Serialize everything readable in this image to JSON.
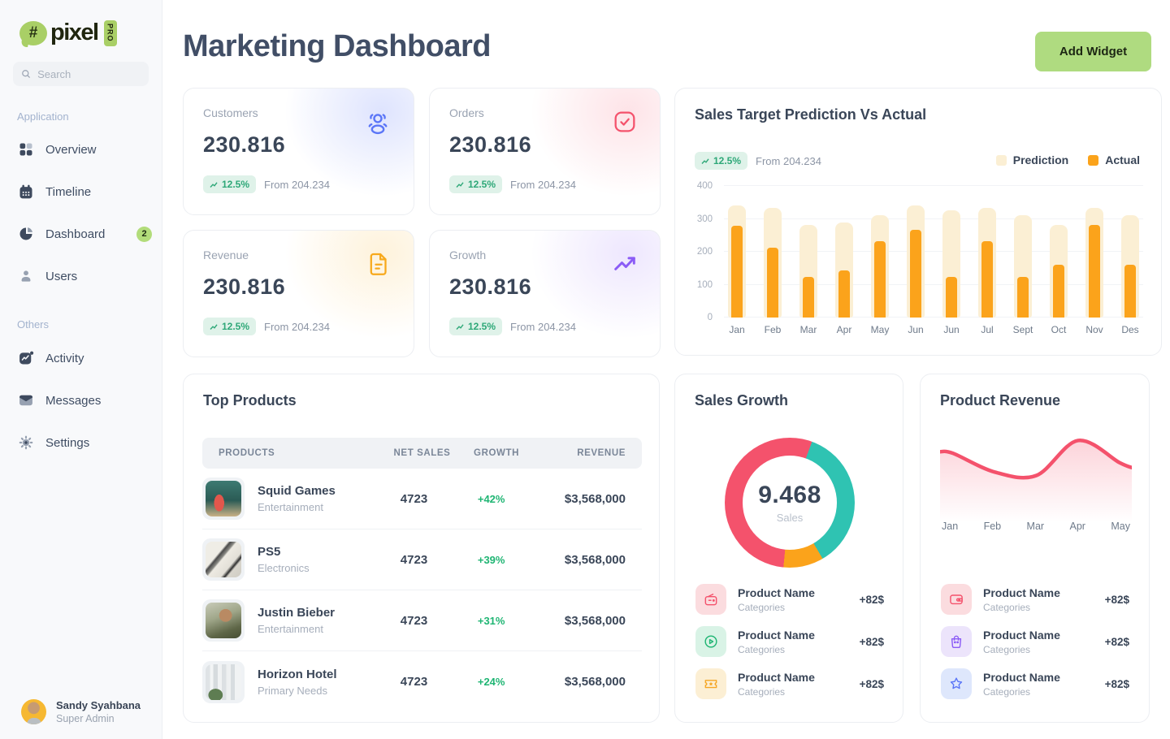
{
  "brand": {
    "bubble_glyph": "#",
    "name": "pixel",
    "pro": "PRO"
  },
  "search": {
    "placeholder": "Search"
  },
  "sidebar": {
    "section1_label": "Application",
    "section2_label": "Others",
    "items": [
      {
        "label": "Overview",
        "icon": "grid"
      },
      {
        "label": "Timeline",
        "icon": "calendar"
      },
      {
        "label": "Dashboard",
        "icon": "pie-chart",
        "badge": "2"
      },
      {
        "label": "Users",
        "icon": "user"
      },
      {
        "label": "Activity",
        "icon": "activity"
      },
      {
        "label": "Messages",
        "icon": "mail"
      },
      {
        "label": "Settings",
        "icon": "gear"
      }
    ],
    "user": {
      "name": "Sandy Syahbana",
      "role": "Super Admin"
    }
  },
  "header": {
    "title": "Marketing Dashboard",
    "add_widget_label": "Add Widget"
  },
  "stats": [
    {
      "label": "Customers",
      "value": "230.816",
      "delta": "12.5%",
      "from": "From 204.234",
      "icon": "users-group",
      "accent": "#5B76F7"
    },
    {
      "label": "Orders",
      "value": "230.816",
      "delta": "12.5%",
      "from": "From 204.234",
      "icon": "check-square",
      "accent": "#F4526C"
    },
    {
      "label": "Revenue",
      "value": "230.816",
      "delta": "12.5%",
      "from": "From 204.234",
      "icon": "document",
      "accent": "#F7A91C"
    },
    {
      "label": "Growth",
      "value": "230.816",
      "delta": "12.5%",
      "from": "From 204.234",
      "icon": "trending-up",
      "accent": "#8B5CF6"
    }
  ],
  "chart_data": [
    {
      "type": "bar",
      "title": "Sales Target Prediction Vs Actual",
      "badge": "12.5%",
      "badge_note": "From 204.234",
      "categories": [
        "Jan",
        "Feb",
        "Mar",
        "Apr",
        "May",
        "Jun",
        "Jun",
        "Jul",
        "Sept",
        "Oct",
        "Nov",
        "Des"
      ],
      "series": [
        {
          "name": "Prediction",
          "color": "#FBEFD4",
          "values": [
            340,
            333,
            281,
            288,
            312,
            340,
            325,
            333,
            312,
            281,
            333,
            312
          ]
        },
        {
          "name": "Actual",
          "color": "#FBA31B",
          "values": [
            280,
            212,
            124,
            144,
            233,
            266,
            124,
            233,
            124,
            161,
            281,
            161
          ]
        }
      ],
      "ylim": [
        0,
        400
      ],
      "yticks": [
        0,
        100,
        200,
        300,
        400
      ],
      "legend_position": "top-right",
      "grid": true
    },
    {
      "type": "pie",
      "title": "Sales Growth",
      "center_value": "9.468",
      "center_label": "Sales",
      "start_angle": 20,
      "slices": [
        {
          "value": 36,
          "color": "#2FC3B2"
        },
        {
          "value": 10,
          "color": "#FBA31B"
        },
        {
          "value": 54,
          "color": "#F4526C"
        }
      ]
    },
    {
      "type": "area",
      "title": "Product Revenue",
      "x": [
        "Jan",
        "Feb",
        "Mar",
        "Apr",
        "May"
      ],
      "values": [
        76,
        54,
        50,
        91,
        65
      ],
      "ylim": [
        0,
        100
      ],
      "color": "#F4526C",
      "grid": false
    }
  ],
  "top_products": {
    "title": "Top Products",
    "columns": [
      "PRODUCTS",
      "NET SALES",
      "GROWTH",
      "REVENUE"
    ],
    "rows": [
      {
        "name": "Squid Games",
        "category": "Entertainment",
        "net_sales": "4723",
        "growth": "+42%",
        "revenue": "$3,568,000"
      },
      {
        "name": "PS5",
        "category": "Electronics",
        "net_sales": "4723",
        "growth": "+39%",
        "revenue": "$3,568,000"
      },
      {
        "name": "Justin Bieber",
        "category": "Entertainment",
        "net_sales": "4723",
        "growth": "+31%",
        "revenue": "$3,568,000"
      },
      {
        "name": "Horizon Hotel",
        "category": "Primary Needs",
        "net_sales": "4723",
        "growth": "+24%",
        "revenue": "$3,568,000"
      }
    ]
  },
  "sales_growth": {
    "title": "Sales Growth",
    "items": [
      {
        "name": "Product Name",
        "category": "Categories",
        "amount": "+82$",
        "icon": "radio"
      },
      {
        "name": "Product Name",
        "category": "Categories",
        "amount": "+82$",
        "icon": "play-circle"
      },
      {
        "name": "Product Name",
        "category": "Categories",
        "amount": "+82$",
        "icon": "ticket"
      }
    ]
  },
  "product_revenue": {
    "title": "Product Revenue",
    "items": [
      {
        "name": "Product Name",
        "category": "Categories",
        "amount": "+82$",
        "icon": "wallet"
      },
      {
        "name": "Product Name",
        "category": "Categories",
        "amount": "+82$",
        "icon": "shopping-bag"
      },
      {
        "name": "Product Name",
        "category": "Categories",
        "amount": "+82$",
        "icon": "star"
      }
    ]
  },
  "colors": {
    "button_green": "#AFDB80",
    "badge_mint_bg": "#DFF2E9",
    "badge_mint_text": "#2EA878",
    "actual_orange": "#FBA31B",
    "prediction_cream": "#FBEFD4",
    "red": "#F4526C",
    "teal": "#2FC3B2",
    "purple": "#8B5CF6",
    "blue": "#5B76F7",
    "growth_green": "#1FB573"
  }
}
